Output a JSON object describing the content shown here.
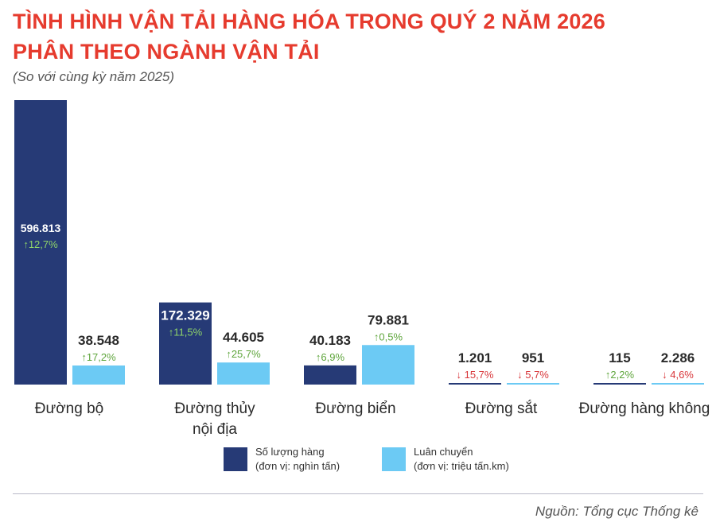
{
  "header": {
    "title_line1": "TÌNH HÌNH VẬN TẢI HÀNG HÓA TRONG QUÝ 2 NĂM 2026",
    "title_line2": "PHÂN THEO NGÀNH VẬN TẢI",
    "subtitle": "(So với cùng kỳ năm 2025)"
  },
  "colors": {
    "title": "#e63b2e",
    "volume": "#263a76",
    "turnover": "#6ccaf4",
    "up": "#5ea53b",
    "down": "#d8363a"
  },
  "chart_data": {
    "type": "bar",
    "categories": [
      [
        "Đường bộ"
      ],
      [
        "Đường thủy",
        "nội địa"
      ],
      [
        "Đường biển"
      ],
      [
        "Đường sắt"
      ],
      [
        "Đường hàng không"
      ]
    ],
    "series": [
      {
        "name": "Số lượng hàng",
        "unit": "(đơn vị: nghìn tấn)",
        "values": [
          596813,
          172329,
          40183,
          1201,
          115
        ],
        "labels": [
          "596.813",
          "172.329",
          "40.183",
          "1.201",
          "115"
        ],
        "changes": [
          "12,7%",
          "11,5%",
          "6,9%",
          "15,7%",
          "2,2%"
        ],
        "directions": [
          "up",
          "up",
          "up",
          "down",
          "up"
        ]
      },
      {
        "name": "Luân chuyển",
        "unit": "(đơn vị: triệu tấn.km)",
        "values": [
          38548,
          44605,
          79881,
          951,
          2286
        ],
        "labels": [
          "38.548",
          "44.605",
          "79.881",
          "951",
          "2.286"
        ],
        "changes": [
          "17,2%",
          "25,7%",
          "0,5%",
          "5,7%",
          "4,6%"
        ],
        "directions": [
          "up",
          "up",
          "up",
          "down",
          "down"
        ]
      }
    ],
    "legend_position": "bottom",
    "grid": false
  },
  "legend": {
    "items": [
      {
        "line1": "Số lượng hàng",
        "line2": "(đơn vị: nghìn tấn)"
      },
      {
        "line1": "Luân chuyển",
        "line2": "(đơn vị: triệu tấn.km)"
      }
    ]
  },
  "footer": {
    "source": "Nguồn: Tổng cục Thống kê"
  }
}
